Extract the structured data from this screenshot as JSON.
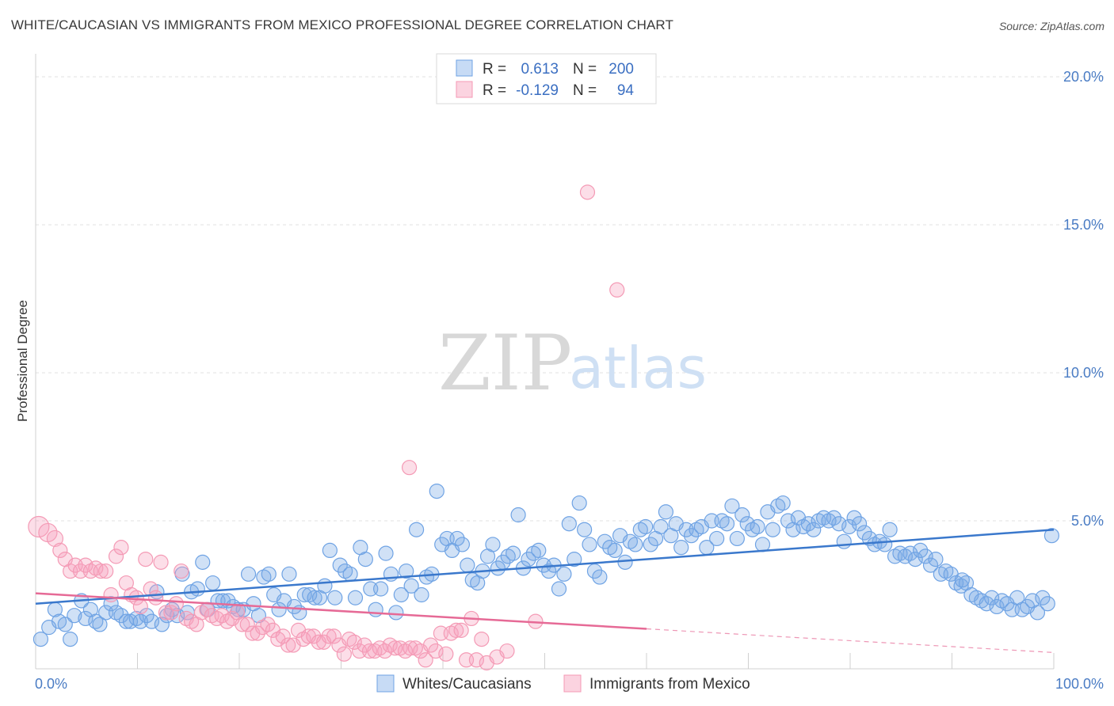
{
  "header": {
    "title": "WHITE/CAUCASIAN VS IMMIGRANTS FROM MEXICO PROFESSIONAL DEGREE CORRELATION CHART",
    "source": "Source: ZipAtlas.com"
  },
  "watermark": {
    "zip": "ZIP",
    "atlas": "atlas"
  },
  "legend": {
    "r_label": "R =",
    "n_label": "N =",
    "rows": [
      {
        "r": "0.613",
        "n": "200",
        "color": "#6fa3e4"
      },
      {
        "r": "-0.129",
        "n": "94",
        "color": "#f49ab5"
      }
    ]
  },
  "chart_data": {
    "type": "scatter",
    "title": "WHITE/CAUCASIAN VS IMMIGRANTS FROM MEXICO PROFESSIONAL DEGREE CORRELATION CHART",
    "xlabel": "",
    "ylabel": "Professional Degree",
    "xlim": [
      0,
      100
    ],
    "ylim": [
      0,
      20
    ],
    "x_tick_labels": [
      "0.0%",
      "100.0%"
    ],
    "y_ticks": [
      5,
      10,
      15,
      20
    ],
    "y_tick_labels": [
      "5.0%",
      "10.0%",
      "15.0%",
      "20.0%"
    ],
    "grid": true,
    "legend_position": "top-center",
    "colors": {
      "blue": "#6fa3e4",
      "blue_line": "#3a78cc",
      "pink": "#f49ab5",
      "pink_line": "#e66a96"
    },
    "series": [
      {
        "name": "Whites/Caucasians",
        "trend": {
          "x0": 0,
          "y0": 2.2,
          "x1": 100,
          "y1": 4.7,
          "dashed_from": null
        },
        "points": [
          [
            0.5,
            1.0
          ],
          [
            1.3,
            1.4
          ],
          [
            1.9,
            2.0
          ],
          [
            2.3,
            1.6
          ],
          [
            2.9,
            1.5
          ],
          [
            3.4,
            1.0
          ],
          [
            3.8,
            1.8
          ],
          [
            4.5,
            2.3
          ],
          [
            4.9,
            1.7
          ],
          [
            5.4,
            2.0
          ],
          [
            5.9,
            1.6
          ],
          [
            6.3,
            1.5
          ],
          [
            6.9,
            1.9
          ],
          [
            7.4,
            2.2
          ],
          [
            7.9,
            1.9
          ],
          [
            8.4,
            1.8
          ],
          [
            8.9,
            1.6
          ],
          [
            9.3,
            1.6
          ],
          [
            9.9,
            1.7
          ],
          [
            10.3,
            1.6
          ],
          [
            10.9,
            1.8
          ],
          [
            11.4,
            1.6
          ],
          [
            11.9,
            2.6
          ],
          [
            12.4,
            1.5
          ],
          [
            12.9,
            1.8
          ],
          [
            13.4,
            2.0
          ],
          [
            13.9,
            1.8
          ],
          [
            14.4,
            3.2
          ],
          [
            14.9,
            1.9
          ],
          [
            15.3,
            2.6
          ],
          [
            15.9,
            2.7
          ],
          [
            16.4,
            3.6
          ],
          [
            16.9,
            2.0
          ],
          [
            17.4,
            2.9
          ],
          [
            17.9,
            2.3
          ],
          [
            18.4,
            2.3
          ],
          [
            18.9,
            2.3
          ],
          [
            19.4,
            2.1
          ],
          [
            19.9,
            2.0
          ],
          [
            20.4,
            2.0
          ],
          [
            20.9,
            3.2
          ],
          [
            21.4,
            2.2
          ],
          [
            21.9,
            1.8
          ],
          [
            22.4,
            3.1
          ],
          [
            22.9,
            3.2
          ],
          [
            23.4,
            2.5
          ],
          [
            23.9,
            2.0
          ],
          [
            24.4,
            2.3
          ],
          [
            24.9,
            3.2
          ],
          [
            25.4,
            2.1
          ],
          [
            25.9,
            1.9
          ],
          [
            26.4,
            2.5
          ],
          [
            26.9,
            2.5
          ],
          [
            27.4,
            2.4
          ],
          [
            27.9,
            2.4
          ],
          [
            28.4,
            2.8
          ],
          [
            28.9,
            4.0
          ],
          [
            29.4,
            2.4
          ],
          [
            29.9,
            3.5
          ],
          [
            30.4,
            3.3
          ],
          [
            30.9,
            3.2
          ],
          [
            31.4,
            2.4
          ],
          [
            31.9,
            4.1
          ],
          [
            32.4,
            3.7
          ],
          [
            32.9,
            2.7
          ],
          [
            33.4,
            2.0
          ],
          [
            33.9,
            2.7
          ],
          [
            34.4,
            3.9
          ],
          [
            34.9,
            3.2
          ],
          [
            35.4,
            1.9
          ],
          [
            35.9,
            2.5
          ],
          [
            36.4,
            3.3
          ],
          [
            36.9,
            2.8
          ],
          [
            37.4,
            4.7
          ],
          [
            37.9,
            2.5
          ],
          [
            38.4,
            3.1
          ],
          [
            38.9,
            3.2
          ],
          [
            39.4,
            6.0
          ],
          [
            39.9,
            4.2
          ],
          [
            40.4,
            4.4
          ],
          [
            40.9,
            4.0
          ],
          [
            41.4,
            4.4
          ],
          [
            41.9,
            4.2
          ],
          [
            42.4,
            3.5
          ],
          [
            42.9,
            3.0
          ],
          [
            43.4,
            2.9
          ],
          [
            43.9,
            3.3
          ],
          [
            44.4,
            3.8
          ],
          [
            44.9,
            4.2
          ],
          [
            45.4,
            3.4
          ],
          [
            45.9,
            3.6
          ],
          [
            46.4,
            3.8
          ],
          [
            46.9,
            3.9
          ],
          [
            47.4,
            5.2
          ],
          [
            47.9,
            3.4
          ],
          [
            48.4,
            3.7
          ],
          [
            48.9,
            3.9
          ],
          [
            49.4,
            4.0
          ],
          [
            49.9,
            3.5
          ],
          [
            50.4,
            3.3
          ],
          [
            50.9,
            3.5
          ],
          [
            51.4,
            2.7
          ],
          [
            51.9,
            3.2
          ],
          [
            52.4,
            4.9
          ],
          [
            52.9,
            3.7
          ],
          [
            53.4,
            5.6
          ],
          [
            53.9,
            4.7
          ],
          [
            54.4,
            4.2
          ],
          [
            54.9,
            3.3
          ],
          [
            55.4,
            3.1
          ],
          [
            55.9,
            4.3
          ],
          [
            56.4,
            4.1
          ],
          [
            56.9,
            4.0
          ],
          [
            57.4,
            4.5
          ],
          [
            57.9,
            3.6
          ],
          [
            58.4,
            4.3
          ],
          [
            58.9,
            4.2
          ],
          [
            59.4,
            4.7
          ],
          [
            59.9,
            4.8
          ],
          [
            60.4,
            4.2
          ],
          [
            60.9,
            4.4
          ],
          [
            61.4,
            4.8
          ],
          [
            61.9,
            5.3
          ],
          [
            62.4,
            4.5
          ],
          [
            62.9,
            4.9
          ],
          [
            63.4,
            4.1
          ],
          [
            63.9,
            4.7
          ],
          [
            64.4,
            4.5
          ],
          [
            64.9,
            4.7
          ],
          [
            65.4,
            4.8
          ],
          [
            65.9,
            4.1
          ],
          [
            66.4,
            5.0
          ],
          [
            66.9,
            4.4
          ],
          [
            67.4,
            5.0
          ],
          [
            67.9,
            4.9
          ],
          [
            68.4,
            5.5
          ],
          [
            68.9,
            4.4
          ],
          [
            69.4,
            5.2
          ],
          [
            69.9,
            4.9
          ],
          [
            70.4,
            4.7
          ],
          [
            70.9,
            4.8
          ],
          [
            71.4,
            4.2
          ],
          [
            71.9,
            5.3
          ],
          [
            72.4,
            4.7
          ],
          [
            72.9,
            5.5
          ],
          [
            73.4,
            5.6
          ],
          [
            73.9,
            5.0
          ],
          [
            74.4,
            4.7
          ],
          [
            74.9,
            5.1
          ],
          [
            75.4,
            4.8
          ],
          [
            75.9,
            4.9
          ],
          [
            76.4,
            4.7
          ],
          [
            76.9,
            5.0
          ],
          [
            77.4,
            5.1
          ],
          [
            77.9,
            5.0
          ],
          [
            78.4,
            5.1
          ],
          [
            78.9,
            4.9
          ],
          [
            79.4,
            4.3
          ],
          [
            79.9,
            4.8
          ],
          [
            80.4,
            5.1
          ],
          [
            80.9,
            4.9
          ],
          [
            81.4,
            4.6
          ],
          [
            81.9,
            4.4
          ],
          [
            82.4,
            4.2
          ],
          [
            82.9,
            4.3
          ],
          [
            83.4,
            4.2
          ],
          [
            83.9,
            4.7
          ],
          [
            84.4,
            3.8
          ],
          [
            84.9,
            3.9
          ],
          [
            85.4,
            3.8
          ],
          [
            85.9,
            3.9
          ],
          [
            86.4,
            3.7
          ],
          [
            86.9,
            4.0
          ],
          [
            87.4,
            3.8
          ],
          [
            87.9,
            3.5
          ],
          [
            88.4,
            3.7
          ],
          [
            88.9,
            3.2
          ],
          [
            89.4,
            3.3
          ],
          [
            89.9,
            3.2
          ],
          [
            90.4,
            2.9
          ],
          [
            90.9,
            2.8
          ],
          [
            91.4,
            2.9
          ],
          [
            91.9,
            2.5
          ],
          [
            92.4,
            2.4
          ],
          [
            92.9,
            2.3
          ],
          [
            93.4,
            2.2
          ],
          [
            93.9,
            2.4
          ],
          [
            94.4,
            2.1
          ],
          [
            94.9,
            2.3
          ],
          [
            95.4,
            2.2
          ],
          [
            95.9,
            2.0
          ],
          [
            96.4,
            2.4
          ],
          [
            96.9,
            2.0
          ],
          [
            97.4,
            2.1
          ],
          [
            97.9,
            2.3
          ],
          [
            98.4,
            1.9
          ],
          [
            98.9,
            2.4
          ],
          [
            99.4,
            2.2
          ],
          [
            99.8,
            4.5
          ],
          [
            91.0,
            3.0
          ]
        ]
      },
      {
        "name": "Immigrants from Mexico",
        "trend": {
          "x0": 0,
          "y0": 2.55,
          "x1": 60,
          "y1": 1.35,
          "dashed_to_x": 100,
          "dashed_to_y": 0.55
        },
        "points": [
          [
            0.3,
            4.8
          ],
          [
            1.2,
            4.6
          ],
          [
            1.9,
            4.4
          ],
          [
            2.4,
            4.0
          ],
          [
            2.9,
            3.7
          ],
          [
            3.4,
            3.3
          ],
          [
            3.9,
            3.5
          ],
          [
            4.4,
            3.3
          ],
          [
            4.9,
            3.5
          ],
          [
            5.4,
            3.3
          ],
          [
            5.9,
            3.4
          ],
          [
            6.4,
            3.3
          ],
          [
            6.9,
            3.3
          ],
          [
            7.4,
            2.5
          ],
          [
            7.9,
            3.8
          ],
          [
            8.4,
            4.1
          ],
          [
            8.9,
            2.9
          ],
          [
            9.4,
            2.5
          ],
          [
            9.9,
            2.4
          ],
          [
            10.3,
            2.1
          ],
          [
            10.8,
            3.7
          ],
          [
            11.3,
            2.7
          ],
          [
            11.8,
            2.4
          ],
          [
            12.3,
            3.6
          ],
          [
            12.8,
            1.9
          ],
          [
            13.3,
            1.9
          ],
          [
            13.8,
            2.2
          ],
          [
            14.3,
            3.3
          ],
          [
            14.8,
            1.7
          ],
          [
            15.3,
            1.6
          ],
          [
            15.8,
            1.5
          ],
          [
            16.3,
            1.9
          ],
          [
            16.8,
            2.0
          ],
          [
            17.3,
            1.8
          ],
          [
            17.8,
            1.7
          ],
          [
            18.3,
            1.8
          ],
          [
            18.8,
            1.6
          ],
          [
            19.3,
            1.7
          ],
          [
            19.8,
            1.9
          ],
          [
            20.3,
            1.5
          ],
          [
            20.8,
            1.5
          ],
          [
            21.3,
            1.2
          ],
          [
            21.8,
            1.2
          ],
          [
            22.3,
            1.4
          ],
          [
            22.8,
            1.5
          ],
          [
            23.3,
            1.3
          ],
          [
            23.8,
            1.0
          ],
          [
            24.3,
            1.1
          ],
          [
            24.8,
            0.8
          ],
          [
            25.3,
            0.8
          ],
          [
            25.8,
            1.3
          ],
          [
            26.3,
            1.0
          ],
          [
            26.8,
            1.1
          ],
          [
            27.3,
            1.1
          ],
          [
            27.8,
            0.9
          ],
          [
            28.3,
            0.9
          ],
          [
            28.8,
            1.1
          ],
          [
            29.3,
            1.1
          ],
          [
            29.8,
            0.8
          ],
          [
            30.3,
            0.5
          ],
          [
            30.8,
            1.0
          ],
          [
            31.3,
            0.9
          ],
          [
            31.8,
            0.6
          ],
          [
            32.3,
            0.8
          ],
          [
            32.8,
            0.6
          ],
          [
            33.3,
            0.6
          ],
          [
            33.8,
            0.7
          ],
          [
            34.3,
            0.6
          ],
          [
            34.8,
            0.8
          ],
          [
            35.3,
            0.7
          ],
          [
            35.8,
            0.7
          ],
          [
            36.3,
            0.6
          ],
          [
            36.8,
            0.7
          ],
          [
            37.3,
            0.7
          ],
          [
            37.8,
            0.6
          ],
          [
            38.3,
            0.3
          ],
          [
            38.8,
            0.8
          ],
          [
            39.3,
            0.6
          ],
          [
            39.8,
            1.2
          ],
          [
            40.3,
            0.5
          ],
          [
            40.8,
            1.2
          ],
          [
            41.3,
            1.3
          ],
          [
            41.8,
            1.3
          ],
          [
            42.3,
            0.3
          ],
          [
            42.8,
            1.7
          ],
          [
            43.3,
            0.3
          ],
          [
            43.8,
            1.0
          ],
          [
            44.3,
            0.2
          ],
          [
            45.3,
            0.4
          ],
          [
            46.3,
            0.6
          ],
          [
            36.7,
            6.8
          ],
          [
            54.2,
            16.1
          ],
          [
            57.1,
            12.8
          ],
          [
            49.1,
            1.6
          ]
        ]
      }
    ]
  },
  "bottom_legend": {
    "items": [
      {
        "label": "Whites/Caucasians",
        "color": "#6fa3e4"
      },
      {
        "label": "Immigrants from Mexico",
        "color": "#f49ab5"
      }
    ]
  }
}
